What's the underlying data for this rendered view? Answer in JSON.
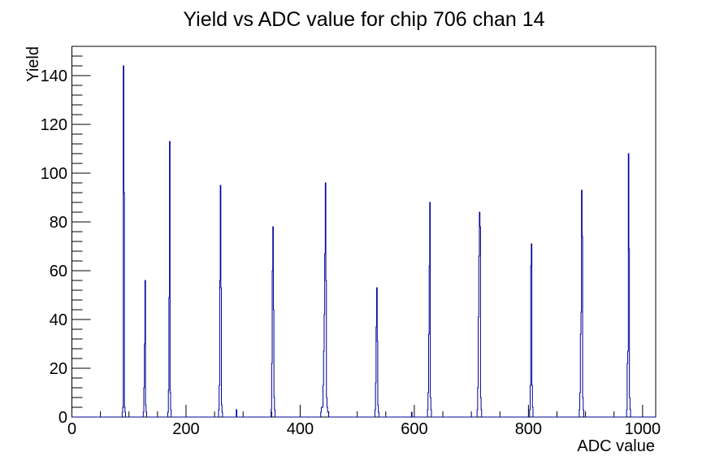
{
  "chart_data": {
    "type": "bar",
    "title": "Yield vs ADC value for chip 706 chan 14",
    "xlabel": "ADC value",
    "ylabel": "Yield",
    "xlim": [
      0,
      1023
    ],
    "ylim": [
      0,
      152
    ],
    "x_major_ticks": [
      0,
      200,
      400,
      600,
      800,
      1000
    ],
    "x_minor_step": 50,
    "y_major_ticks": [
      0,
      20,
      40,
      60,
      80,
      100,
      120,
      140
    ],
    "y_minor_step": 4,
    "grid": false,
    "legend": null,
    "line_color": "#000099",
    "axis_color": "#000000",
    "background_color": "#ffffff",
    "bin_width_adc": 1,
    "bins": [
      [
        88,
        2
      ],
      [
        89,
        4
      ],
      [
        90,
        144
      ],
      [
        91,
        92
      ],
      [
        92,
        4
      ],
      [
        93,
        2
      ],
      [
        125,
        2
      ],
      [
        126,
        12
      ],
      [
        127,
        30
      ],
      [
        128,
        56
      ],
      [
        129,
        5
      ],
      [
        130,
        2
      ],
      [
        168,
        2
      ],
      [
        169,
        11
      ],
      [
        170,
        49
      ],
      [
        171,
        113
      ],
      [
        172,
        10
      ],
      [
        173,
        3
      ],
      [
        257,
        3
      ],
      [
        258,
        13
      ],
      [
        259,
        56
      ],
      [
        260,
        95
      ],
      [
        261,
        53
      ],
      [
        262,
        5
      ],
      [
        263,
        2
      ],
      [
        288,
        3
      ],
      [
        349,
        3
      ],
      [
        350,
        22
      ],
      [
        351,
        60
      ],
      [
        352,
        78
      ],
      [
        353,
        44
      ],
      [
        354,
        8
      ],
      [
        355,
        3
      ],
      [
        436,
        2
      ],
      [
        437,
        4
      ],
      [
        438,
        4
      ],
      [
        439,
        4
      ],
      [
        440,
        13
      ],
      [
        441,
        27
      ],
      [
        442,
        42
      ],
      [
        443,
        67
      ],
      [
        444,
        96
      ],
      [
        445,
        56
      ],
      [
        446,
        8
      ],
      [
        447,
        4
      ],
      [
        448,
        2
      ],
      [
        449,
        2
      ],
      [
        531,
        3
      ],
      [
        532,
        14
      ],
      [
        533,
        37
      ],
      [
        534,
        53
      ],
      [
        535,
        31
      ],
      [
        536,
        5
      ],
      [
        537,
        2
      ],
      [
        595,
        2
      ],
      [
        623,
        3
      ],
      [
        624,
        10
      ],
      [
        625,
        34
      ],
      [
        626,
        62
      ],
      [
        627,
        88
      ],
      [
        628,
        8
      ],
      [
        629,
        3
      ],
      [
        710,
        3
      ],
      [
        711,
        12
      ],
      [
        712,
        41
      ],
      [
        713,
        66
      ],
      [
        714,
        84
      ],
      [
        715,
        78
      ],
      [
        716,
        8
      ],
      [
        717,
        3
      ],
      [
        802,
        3
      ],
      [
        803,
        13
      ],
      [
        804,
        62
      ],
      [
        805,
        71
      ],
      [
        806,
        13
      ],
      [
        807,
        4
      ],
      [
        889,
        3
      ],
      [
        890,
        10
      ],
      [
        891,
        34
      ],
      [
        892,
        43
      ],
      [
        893,
        93
      ],
      [
        894,
        74
      ],
      [
        895,
        8
      ],
      [
        896,
        3
      ],
      [
        972,
        3
      ],
      [
        973,
        22
      ],
      [
        974,
        27
      ],
      [
        975,
        108
      ],
      [
        976,
        69
      ],
      [
        977,
        8
      ],
      [
        978,
        3
      ]
    ]
  }
}
